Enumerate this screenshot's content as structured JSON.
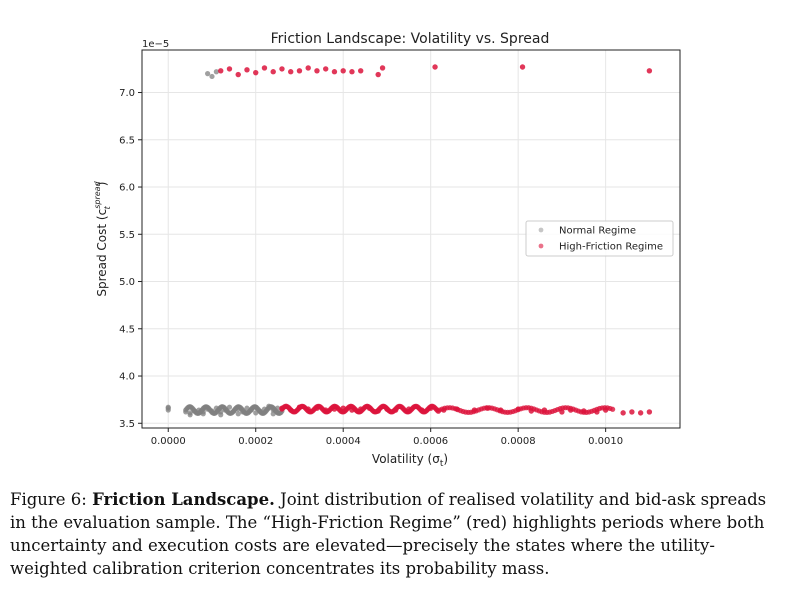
{
  "chart_data": {
    "type": "scatter",
    "title": "Friction Landscape: Volatility vs. Spread",
    "xlabel": "Volatility (σ",
    "xlabel_sub": "t",
    "xlabel_close": ")",
    "ylabel": "Spread Cost (c",
    "ylabel_sub": "t",
    "ylabel_sup": "spread",
    "ylabel_close": ")",
    "offset_text": "1e−5",
    "xlim": [
      -6e-05,
      0.00117
    ],
    "ylim": [
      3.45,
      7.45
    ],
    "x_ticks": [
      0,
      0.0002,
      0.0004,
      0.0006,
      0.0008,
      0.001
    ],
    "x_tick_labels": [
      "0.0000",
      "0.0002",
      "0.0004",
      "0.0006",
      "0.0008",
      "0.0010"
    ],
    "y_ticks": [
      3.5,
      4.0,
      4.5,
      5.0,
      5.5,
      6.0,
      6.5,
      7.0
    ],
    "y_tick_labels": [
      "3.5",
      "4.0",
      "4.5",
      "5.0",
      "5.5",
      "6.0",
      "6.5",
      "7.0"
    ],
    "grid": true,
    "legend_position": "center-right",
    "colors": {
      "normal": "#808080",
      "high": "#dc143c"
    },
    "series": [
      {
        "name": "Normal Regime",
        "color": "#808080",
        "points": [
          [
            0.0,
            3.67
          ],
          [
            0.0,
            3.64
          ],
          [
            0.0,
            3.66
          ],
          [
            4e-05,
            3.62
          ],
          [
            5e-05,
            3.61
          ],
          [
            6e-05,
            3.63
          ],
          [
            7e-05,
            3.64
          ],
          [
            8e-05,
            3.62
          ],
          [
            9e-05,
            3.65
          ],
          [
            0.0001,
            3.63
          ],
          [
            0.00011,
            3.66
          ],
          [
            0.00012,
            3.62
          ],
          [
            0.00013,
            3.64
          ],
          [
            0.00014,
            3.67
          ],
          [
            0.00015,
            3.63
          ],
          [
            0.00016,
            3.65
          ],
          [
            0.00017,
            3.62
          ],
          [
            0.00018,
            3.66
          ],
          [
            0.00019,
            3.64
          ],
          [
            0.0002,
            3.67
          ],
          [
            0.00021,
            3.63
          ],
          [
            0.00022,
            3.65
          ],
          [
            0.00023,
            3.68
          ],
          [
            0.00024,
            3.64
          ],
          [
            0.00025,
            3.66
          ],
          [
            0.00026,
            3.63
          ],
          [
            5e-05,
            3.59
          ],
          [
            8e-05,
            3.6
          ],
          [
            0.00012,
            3.59
          ],
          [
            0.00016,
            3.6
          ],
          [
            0.0002,
            3.61
          ],
          [
            0.00024,
            3.6
          ],
          [
            9e-05,
            7.2
          ],
          [
            0.0001,
            7.17
          ],
          [
            0.00011,
            7.22
          ]
        ]
      },
      {
        "name": "High-Friction Regime",
        "color": "#dc143c",
        "points": [
          [
            0.00026,
            3.66
          ],
          [
            0.00028,
            3.64
          ],
          [
            0.0003,
            3.67
          ],
          [
            0.00032,
            3.65
          ],
          [
            0.00034,
            3.66
          ],
          [
            0.00036,
            3.64
          ],
          [
            0.00038,
            3.65
          ],
          [
            0.0004,
            3.66
          ],
          [
            0.00042,
            3.64
          ],
          [
            0.00044,
            3.65
          ],
          [
            0.00046,
            3.66
          ],
          [
            0.00048,
            3.63
          ],
          [
            0.0005,
            3.65
          ],
          [
            0.00052,
            3.64
          ],
          [
            0.00055,
            3.65
          ],
          [
            0.00058,
            3.64
          ],
          [
            0.0006,
            3.66
          ],
          [
            0.00063,
            3.64
          ],
          [
            0.00066,
            3.65
          ],
          [
            0.0007,
            3.64
          ],
          [
            0.00073,
            3.66
          ],
          [
            0.00076,
            3.64
          ],
          [
            0.0008,
            3.65
          ],
          [
            0.00083,
            3.63
          ],
          [
            0.00086,
            3.64
          ],
          [
            0.0009,
            3.62
          ],
          [
            0.00092,
            3.64
          ],
          [
            0.00095,
            3.63
          ],
          [
            0.00098,
            3.62
          ],
          [
            0.001,
            3.64
          ],
          [
            0.00104,
            3.61
          ],
          [
            0.00106,
            3.62
          ],
          [
            0.00108,
            3.61
          ],
          [
            0.0011,
            3.62
          ],
          [
            0.00012,
            7.23
          ],
          [
            0.00014,
            7.25
          ],
          [
            0.00016,
            7.19
          ],
          [
            0.00018,
            7.24
          ],
          [
            0.0002,
            7.21
          ],
          [
            0.00022,
            7.26
          ],
          [
            0.00024,
            7.22
          ],
          [
            0.00026,
            7.25
          ],
          [
            0.00028,
            7.22
          ],
          [
            0.0003,
            7.23
          ],
          [
            0.00032,
            7.26
          ],
          [
            0.00034,
            7.23
          ],
          [
            0.00036,
            7.25
          ],
          [
            0.00038,
            7.22
          ],
          [
            0.0004,
            7.23
          ],
          [
            0.00042,
            7.22
          ],
          [
            0.00044,
            7.23
          ],
          [
            0.00048,
            7.19
          ],
          [
            0.00049,
            7.26
          ],
          [
            0.00061,
            7.27
          ],
          [
            0.00081,
            7.27
          ],
          [
            0.0011,
            7.23
          ]
        ]
      }
    ]
  },
  "caption": {
    "prefix": "Figure 6: ",
    "bold": "Friction Landscape.",
    "text": " Joint distribution of realised volatility and bid-ask spreads in the evaluation sample. The “High-Friction Regime” (red) highlights periods where both uncertainty and execution costs are elevated—precisely the states where the utility-weighted calibration criterion concentrates its probability mass."
  }
}
